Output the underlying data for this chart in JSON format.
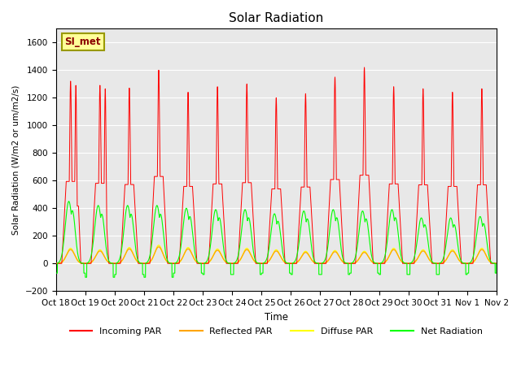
{
  "title": "Solar Radiation",
  "ylabel": "Solar Radiation (W/m2 or um/m2/s)",
  "xlabel": "Time",
  "ylim": [
    -200,
    1700
  ],
  "yticks": [
    -200,
    0,
    200,
    400,
    600,
    800,
    1000,
    1200,
    1400,
    1600
  ],
  "n_days": 15,
  "xtick_labels": [
    "Oct 18",
    "Oct 19",
    "Oct 20",
    "Oct 21",
    "Oct 22",
    "Oct 23",
    "Oct 24",
    "Oct 25",
    "Oct 26",
    "Oct 27",
    "Oct 28",
    "Oct 29",
    "Oct 30",
    "Oct 31",
    "Nov 1",
    "Nov 2"
  ],
  "station_label": "SI_met",
  "legend": [
    "Incoming PAR",
    "Reflected PAR",
    "Diffuse PAR",
    "Net Radiation"
  ],
  "line_colors": [
    "red",
    "orange",
    "yellow",
    "lime"
  ],
  "plot_bg": "#e8e8e8",
  "day_peaks": [
    1320,
    1290,
    1270,
    1400,
    1240,
    1280,
    1300,
    1200,
    1230,
    1350,
    1420,
    1280,
    1265,
    1240,
    1265
  ],
  "day_peak2": [
    1290,
    1265,
    null,
    null,
    null,
    null,
    null,
    null,
    null,
    null,
    null,
    null,
    null,
    null,
    null
  ],
  "green_peaks": [
    450,
    420,
    420,
    420,
    400,
    390,
    390,
    360,
    380,
    390,
    380,
    390,
    330,
    330,
    340
  ],
  "orange_peaks": [
    100,
    90,
    105,
    120,
    105,
    95,
    100,
    90,
    80,
    85,
    80,
    100,
    90,
    90,
    100
  ],
  "night_green": [
    -70,
    -100,
    -80,
    -100,
    -70,
    -80,
    -80,
    -70,
    -80,
    -80,
    -70,
    -80,
    -80,
    -80,
    -70
  ]
}
